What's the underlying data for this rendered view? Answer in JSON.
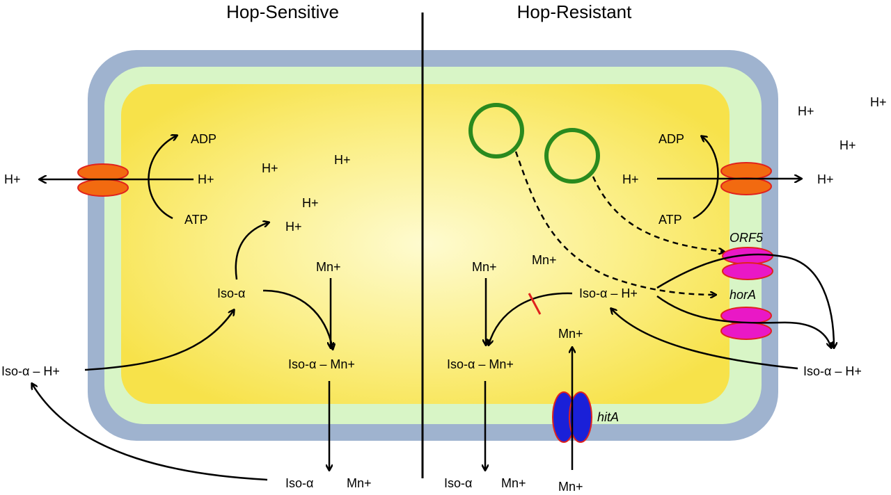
{
  "titles": {
    "left": "Hop-Sensitive",
    "right": "Hop-Resistant"
  },
  "labels": {
    "h": "H+",
    "adp": "ADP",
    "atp": "ATP",
    "mn": "Mn+",
    "iso_alpha": "Iso-α",
    "iso_alpha_h": "Iso-α – H+",
    "iso_alpha_mn": "Iso-α – Mn+"
  },
  "genes": {
    "orf5": "ORF5",
    "hora": "horA",
    "hita": "hitA"
  },
  "colors": {
    "cell_wall": "#9fb3cf",
    "membrane": "#d8f5c6",
    "cytoplasm_center": "#fdf7b4",
    "cytoplasm_edge": "#f8e44d",
    "atpase": "#f26a10",
    "transporter_pink": "#e918c6",
    "transporter_blue": "#1a20d8",
    "vesicle": "#2a8a1e",
    "outline_red": "#e0221d"
  }
}
